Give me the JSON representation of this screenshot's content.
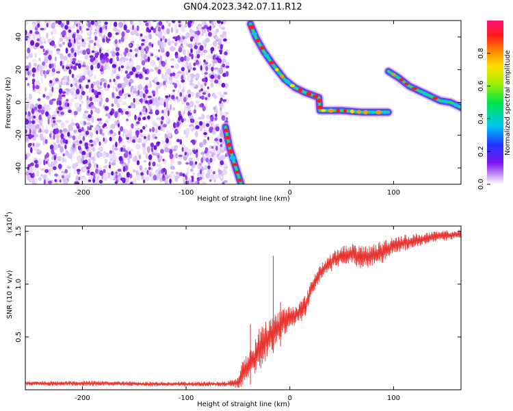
{
  "figure_title": "GN04.2023.342.07.11.R12",
  "colors": {
    "snr_line": "#e8332e",
    "spectrogram_background": "#ffffff",
    "speckle_dark": "#7a1fe8",
    "speckle_light": "#c9a8f2"
  },
  "colorbar": {
    "label": "Normalized spectral amplitude",
    "ticks": [
      "0.0",
      "0.2",
      "0.4",
      "0.6",
      "0.8"
    ],
    "tick_values": [
      0.0,
      0.2,
      0.4,
      0.6,
      0.8
    ],
    "range": [
      0,
      1
    ],
    "colormap": "rainbow (magenta-red-orange-yellow-green-cyan-blue-violet-white)"
  },
  "chart_data": [
    {
      "type": "heatmap",
      "title": "",
      "xlabel": "Height of straight line (km)",
      "ylabel": "Frequency (Hz)",
      "xlim": [
        -255,
        165
      ],
      "ylim": [
        -50,
        50
      ],
      "xticks": [
        -200,
        -100,
        0,
        100
      ],
      "xtick_labels": [
        "-200",
        "-100",
        "0",
        "100"
      ],
      "yticks": [
        -40,
        -20,
        0,
        20,
        40
      ],
      "ytick_labels": [
        "-40",
        "-20",
        "0",
        "20",
        "40"
      ],
      "noise_region_x": [
        -255,
        -60
      ],
      "features": [
        {
          "name": "",
          "points": [
            [
              -62,
              -15
            ],
            [
              -58,
              -28
            ],
            [
              -52,
              -40
            ],
            [
              -47,
              -50
            ]
          ]
        },
        {
          "name": "",
          "points": [
            [
              -38,
              48
            ],
            [
              -33,
              40
            ],
            [
              -25,
              31
            ],
            [
              -15,
              22
            ],
            [
              -5,
              14
            ],
            [
              5,
              9
            ],
            [
              15,
              6
            ],
            [
              28,
              3
            ],
            [
              29,
              -5
            ],
            [
              50,
              -5
            ],
            [
              70,
              -6
            ],
            [
              95,
              -6
            ]
          ]
        },
        {
          "name": "",
          "points": [
            [
              95,
              19
            ],
            [
              105,
              15
            ],
            [
              115,
              10
            ],
            [
              125,
              7
            ],
            [
              135,
              4
            ],
            [
              145,
              1
            ],
            [
              155,
              0
            ],
            [
              165,
              -3
            ]
          ]
        }
      ]
    },
    {
      "type": "line",
      "title": "",
      "xlabel": "Height of straight line (km)",
      "ylabel": "SNR (10 * v/v)",
      "y_multiplier_label": "(x10",
      "y_multiplier_exponent": "4",
      "xlim": [
        -255,
        165
      ],
      "ylim": [
        0,
        15500
      ],
      "xticks": [
        -200,
        -100,
        0,
        100
      ],
      "xtick_labels": [
        "-200",
        "-100",
        "0",
        "100"
      ],
      "yticks": [
        5000,
        10000,
        15000
      ],
      "ytick_labels": [
        "0.5",
        "1.0",
        "1.5"
      ],
      "series": [
        {
          "name": "",
          "x": [
            -255,
            -220,
            -180,
            -140,
            -100,
            -60,
            -50,
            -45,
            -40,
            -35,
            -30,
            -25,
            -20,
            -15,
            -10,
            -5,
            0,
            5,
            10,
            15,
            20,
            25,
            30,
            40,
            50,
            60,
            70,
            80,
            90,
            100,
            110,
            120,
            130,
            140,
            150,
            160,
            165
          ],
          "y": [
            600,
            600,
            600,
            550,
            550,
            550,
            700,
            1500,
            2300,
            2800,
            3800,
            4400,
            5000,
            5600,
            6000,
            6500,
            6800,
            7100,
            7400,
            8000,
            9300,
            10400,
            11200,
            12100,
            12700,
            12900,
            12500,
            12700,
            13100,
            13700,
            13900,
            14100,
            14300,
            14500,
            14600,
            14700,
            14800
          ],
          "fluctuation": [
            200,
            250,
            250,
            230,
            230,
            250,
            700,
            1400,
            1500,
            1500,
            2000,
            2000,
            2000,
            1700,
            1500,
            1400,
            1200,
            1100,
            1100,
            1000,
            900,
            900,
            800,
            900,
            900,
            1000,
            1100,
            1100,
            1100,
            900,
            800,
            700,
            600,
            500,
            500,
            400,
            400
          ],
          "spikes": [
            [
              -38,
              6200
            ],
            [
              -28,
              5500
            ],
            [
              -16,
              12700
            ],
            [
              -9,
              8300
            ]
          ]
        }
      ]
    }
  ]
}
